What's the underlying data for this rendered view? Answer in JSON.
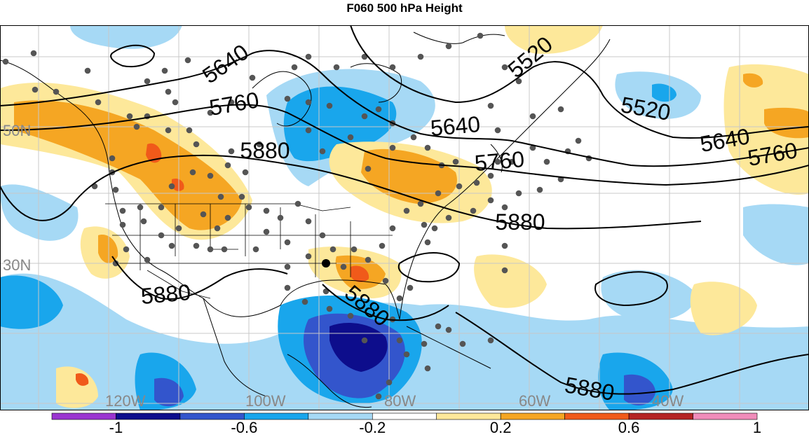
{
  "title": "F060 500 hPa Height",
  "lat_labels": [
    "50N",
    "30N"
  ],
  "lon_labels": [
    "120W",
    "100W",
    "80W",
    "60W",
    "40W"
  ],
  "contours": [
    {
      "label": "5520",
      "line": 1
    },
    {
      "label": "5520",
      "line": 1
    },
    {
      "label": "5640",
      "line": 2
    },
    {
      "label": "5640",
      "line": 2
    },
    {
      "label": "5640",
      "line": 2
    },
    {
      "label": "5760",
      "line": 3
    },
    {
      "label": "5760",
      "line": 3
    },
    {
      "label": "5760",
      "line": 3
    },
    {
      "label": "5880",
      "line": 4
    },
    {
      "label": "5880",
      "line": 4
    },
    {
      "label": "5880",
      "line": 5
    },
    {
      "label": "5880",
      "line": 6
    },
    {
      "label": "5880",
      "line": 7
    }
  ],
  "colorbar": {
    "colors": [
      "#9a34d0",
      "#0d0d8c",
      "#3355cc",
      "#19a6ec",
      "#a6d9f5",
      "#ffffff",
      "#fde89a",
      "#f5a623",
      "#f05a1a",
      "#b52424",
      "#f08cba"
    ],
    "tick_labels": [
      "-1",
      "-0.6",
      "-0.2",
      "0.2",
      "0.6",
      "1"
    ]
  }
}
